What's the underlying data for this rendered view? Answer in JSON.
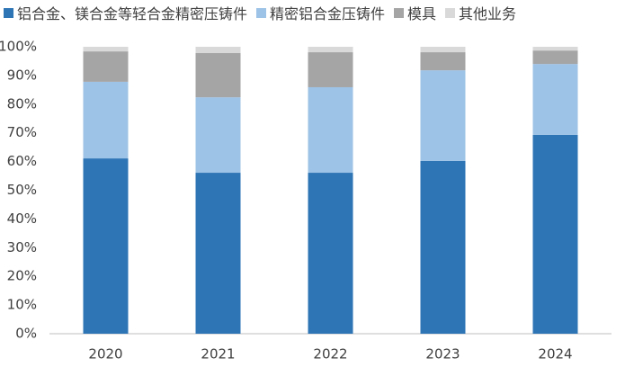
{
  "chart_data": {
    "type": "stacked_bar",
    "categories": [
      "2020",
      "2021",
      "2022",
      "2023",
      "2024"
    ],
    "series": [
      {
        "name": "铝合金、镁合金等轻合金精密压铸件",
        "color": "#2e75b6",
        "values": [
          61.1,
          56.1,
          56.1,
          60.2,
          69.3
        ]
      },
      {
        "name": "精密铝合金压铸件",
        "color": "#9dc3e6",
        "values": [
          26.7,
          26.3,
          29.8,
          31.6,
          24.7
        ]
      },
      {
        "name": "模具",
        "color": "#a5a5a5",
        "values": [
          10.6,
          15.4,
          12.2,
          6.3,
          4.7
        ]
      },
      {
        "name": "其他业务",
        "color": "#d9d9d9",
        "values": [
          1.6,
          2.2,
          1.9,
          1.9,
          1.3
        ]
      }
    ],
    "ylim": [
      0,
      100
    ],
    "yticks": [
      {
        "value": 0,
        "label": "0%"
      },
      {
        "value": 10,
        "label": "10%"
      },
      {
        "value": 20,
        "label": "20%"
      },
      {
        "value": 30,
        "label": "30%"
      },
      {
        "value": 40,
        "label": "40%"
      },
      {
        "value": 50,
        "label": "50%"
      },
      {
        "value": 60,
        "label": "60%"
      },
      {
        "value": 70,
        "label": "70%"
      },
      {
        "value": 80,
        "label": "80%"
      },
      {
        "value": 90,
        "label": "90%"
      },
      {
        "value": 100,
        "label": "100%"
      }
    ],
    "legend": "top",
    "grid": false
  }
}
